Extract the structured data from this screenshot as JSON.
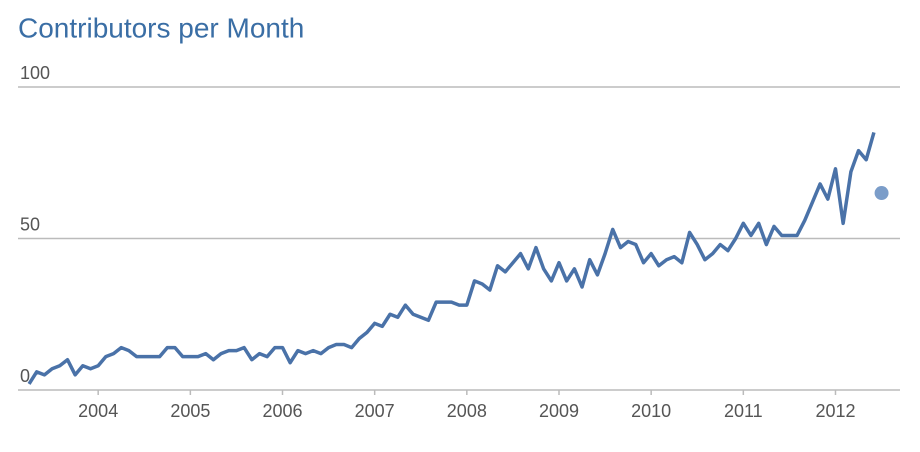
{
  "chart_data": {
    "type": "line",
    "title": "Contributors per Month",
    "xlim": [
      2003.13,
      2012.7
    ],
    "xticks": [
      2004,
      2005,
      2006,
      2007,
      2008,
      2009,
      2010,
      2011,
      2012
    ],
    "ylim": [
      0,
      100
    ],
    "yticks": [
      0,
      50,
      100
    ],
    "grid": true,
    "series": [
      {
        "color": "#4a72a8",
        "style": "line",
        "x": [
          2003.25,
          2003.333,
          2003.417,
          2003.5,
          2003.583,
          2003.667,
          2003.75,
          2003.833,
          2003.917,
          2004,
          2004.083,
          2004.167,
          2004.25,
          2004.333,
          2004.417,
          2004.5,
          2004.583,
          2004.667,
          2004.75,
          2004.833,
          2004.917,
          2005,
          2005.083,
          2005.167,
          2005.25,
          2005.333,
          2005.417,
          2005.5,
          2005.583,
          2005.667,
          2005.75,
          2005.833,
          2005.917,
          2006,
          2006.083,
          2006.167,
          2006.25,
          2006.333,
          2006.417,
          2006.5,
          2006.583,
          2006.667,
          2006.75,
          2006.833,
          2006.917,
          2007,
          2007.083,
          2007.167,
          2007.25,
          2007.333,
          2007.417,
          2007.5,
          2007.583,
          2007.667,
          2007.75,
          2007.833,
          2007.917,
          2008,
          2008.083,
          2008.167,
          2008.25,
          2008.333,
          2008.417,
          2008.5,
          2008.583,
          2008.667,
          2008.75,
          2008.833,
          2008.917,
          2009,
          2009.083,
          2009.167,
          2009.25,
          2009.333,
          2009.417,
          2009.5,
          2009.583,
          2009.667,
          2009.75,
          2009.833,
          2009.917,
          2010,
          2010.083,
          2010.167,
          2010.25,
          2010.333,
          2010.417,
          2010.5,
          2010.583,
          2010.667,
          2010.75,
          2010.833,
          2010.917,
          2011,
          2011.083,
          2011.167,
          2011.25,
          2011.333,
          2011.417,
          2011.5,
          2011.583,
          2011.667,
          2011.75,
          2011.833,
          2011.917,
          2012,
          2012.083,
          2012.167,
          2012.25,
          2012.333,
          2012.417
        ],
        "values": [
          2,
          6,
          5,
          7,
          8,
          10,
          5,
          8,
          7,
          8,
          11,
          12,
          14,
          13,
          11,
          11,
          11,
          11,
          14,
          14,
          11,
          11,
          11,
          12,
          10,
          12,
          13,
          13,
          14,
          10,
          12,
          11,
          14,
          14,
          9,
          13,
          12,
          13,
          12,
          14,
          15,
          15,
          14,
          17,
          19,
          22,
          21,
          25,
          24,
          28,
          25,
          24,
          23,
          29,
          29,
          29,
          28,
          28,
          36,
          35,
          33,
          41,
          39,
          42,
          45,
          40,
          47,
          40,
          36,
          42,
          36,
          40,
          34,
          43,
          38,
          45,
          53,
          47,
          49,
          48,
          42,
          45,
          41,
          43,
          44,
          42,
          52,
          48,
          43,
          45,
          48,
          46,
          50,
          55,
          51,
          55,
          48,
          54,
          51,
          51,
          51,
          56,
          62,
          68,
          63,
          73,
          55,
          72,
          79,
          76,
          85
        ]
      },
      {
        "color": "#7b9dc9",
        "style": "point",
        "x": [
          2012.5
        ],
        "values": [
          65
        ]
      }
    ]
  }
}
